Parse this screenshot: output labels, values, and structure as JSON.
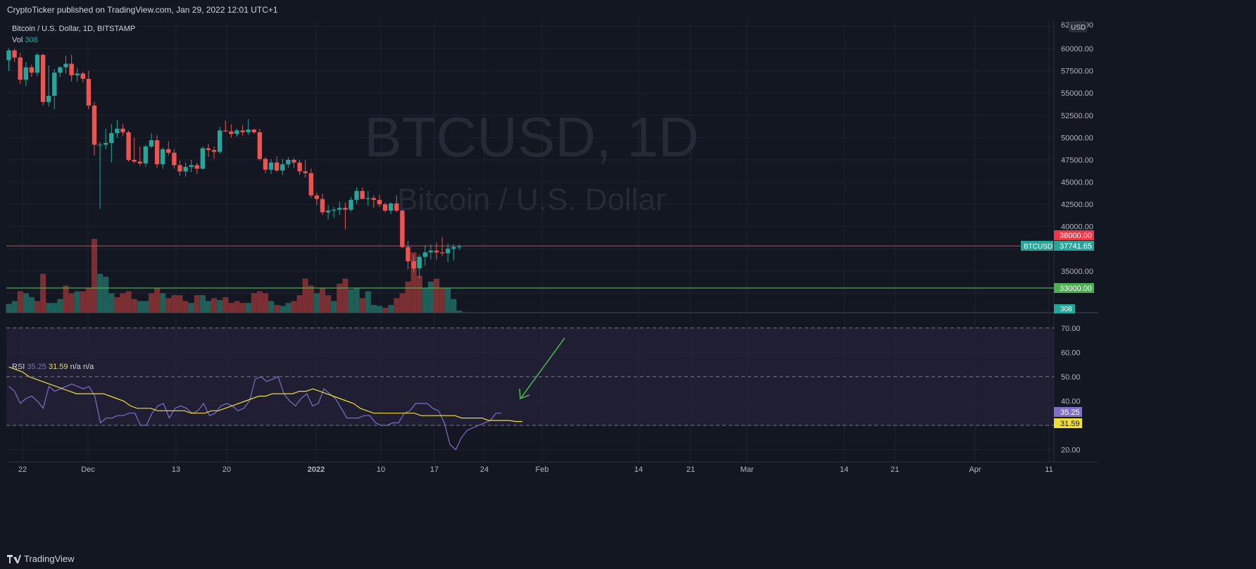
{
  "header": {
    "publisher_line": "CryptoTicker published on TradingView.com, Jan 29, 2022 12:01 UTC+1"
  },
  "legend": {
    "symbol_line": "Bitcoin / U.S. Dollar, 1D, BITSTAMP",
    "vol_label": "Vol",
    "vol_value": "308",
    "rsi_label": "RSI",
    "rsi_value": "35.25",
    "rsi_ma_value": "31.59",
    "rsi_na1": "n/a",
    "rsi_na2": "n/a"
  },
  "watermark": {
    "title": "BTCUSD, 1D",
    "subtitle": "Bitcoin / U.S. Dollar"
  },
  "footer": {
    "brand": "TradingView"
  },
  "colors": {
    "up": "#26a69a",
    "down": "#ef5350",
    "background": "#131722",
    "grid": "#1f2330",
    "resistance": "#f23645",
    "support": "#4caf50",
    "rsi_line": "#7e6fc8",
    "rsi_ma": "#f1dd3a",
    "rsi_band": "#2a2540",
    "arrow": "#4caf50"
  },
  "chart_data": {
    "type": "candlestick",
    "symbol": "BTCUSD",
    "timeframe": "1D",
    "exchange": "BITSTAMP",
    "price_axis": {
      "currency": "USD",
      "top_label": "62500.00",
      "ticks": [
        "60000.00",
        "57500.00",
        "55000.00",
        "52500.00",
        "50000.00",
        "47500.00",
        "45000.00",
        "42500.00",
        "40000.00",
        "35000.00"
      ]
    },
    "x_axis_ticks": [
      "22",
      "Dec",
      "13",
      "20",
      "2022",
      "10",
      "17",
      "24",
      "Feb",
      "14",
      "21",
      "Mar",
      "14",
      "21",
      "Apr",
      "11"
    ],
    "price_labels": {
      "resistance": {
        "value": 38000,
        "label": "38000.00"
      },
      "current": {
        "value": 37741.65,
        "label": "37741.65",
        "tag": "BTCUSD"
      },
      "support": {
        "value": 33000,
        "label": "33000.00"
      },
      "volume": {
        "label": "308"
      }
    },
    "candles": [
      {
        "o": 58700,
        "h": 60000,
        "l": 57500,
        "c": 59800
      },
      {
        "o": 59800,
        "h": 60000,
        "l": 58500,
        "c": 59000
      },
      {
        "o": 59000,
        "h": 59500,
        "l": 56000,
        "c": 56500
      },
      {
        "o": 56500,
        "h": 58500,
        "l": 55800,
        "c": 57900
      },
      {
        "o": 57900,
        "h": 58200,
        "l": 56800,
        "c": 57300
      },
      {
        "o": 57300,
        "h": 59500,
        "l": 56900,
        "c": 59300
      },
      {
        "o": 59300,
        "h": 59400,
        "l": 53600,
        "c": 54000
      },
      {
        "o": 54000,
        "h": 58100,
        "l": 53500,
        "c": 54700
      },
      {
        "o": 54700,
        "h": 57700,
        "l": 53200,
        "c": 57300
      },
      {
        "o": 57300,
        "h": 58000,
        "l": 56800,
        "c": 57900
      },
      {
        "o": 57900,
        "h": 59200,
        "l": 57200,
        "c": 58300
      },
      {
        "o": 58300,
        "h": 59300,
        "l": 56300,
        "c": 57000
      },
      {
        "o": 57000,
        "h": 57800,
        "l": 56300,
        "c": 57200
      },
      {
        "o": 57200,
        "h": 57400,
        "l": 56200,
        "c": 56600
      },
      {
        "o": 56600,
        "h": 57500,
        "l": 53200,
        "c": 53600
      },
      {
        "o": 53600,
        "h": 54000,
        "l": 48000,
        "c": 49200
      },
      {
        "o": 49200,
        "h": 49500,
        "l": 42000,
        "c": 49200
      },
      {
        "o": 49200,
        "h": 51000,
        "l": 48700,
        "c": 49400
      },
      {
        "o": 49400,
        "h": 51500,
        "l": 47200,
        "c": 50500
      },
      {
        "o": 50500,
        "h": 52000,
        "l": 50000,
        "c": 51000
      },
      {
        "o": 51000,
        "h": 51500,
        "l": 50200,
        "c": 50600
      },
      {
        "o": 50600,
        "h": 50800,
        "l": 47300,
        "c": 47500
      },
      {
        "o": 47500,
        "h": 50000,
        "l": 47100,
        "c": 47300
      },
      {
        "o": 47300,
        "h": 49000,
        "l": 46800,
        "c": 47100
      },
      {
        "o": 47100,
        "h": 49200,
        "l": 46700,
        "c": 49000
      },
      {
        "o": 49000,
        "h": 50500,
        "l": 48800,
        "c": 49700
      },
      {
        "o": 49700,
        "h": 50300,
        "l": 46600,
        "c": 47000
      },
      {
        "o": 47000,
        "h": 48900,
        "l": 46500,
        "c": 48700
      },
      {
        "o": 48700,
        "h": 49600,
        "l": 48000,
        "c": 48300
      },
      {
        "o": 48300,
        "h": 48700,
        "l": 46500,
        "c": 46900
      },
      {
        "o": 46900,
        "h": 47400,
        "l": 45700,
        "c": 46200
      },
      {
        "o": 46200,
        "h": 47200,
        "l": 45600,
        "c": 46700
      },
      {
        "o": 46700,
        "h": 47500,
        "l": 46100,
        "c": 46900
      },
      {
        "o": 46900,
        "h": 47200,
        "l": 45900,
        "c": 46500
      },
      {
        "o": 46500,
        "h": 49000,
        "l": 46400,
        "c": 48800
      },
      {
        "o": 48800,
        "h": 49300,
        "l": 47800,
        "c": 48600
      },
      {
        "o": 48600,
        "h": 49000,
        "l": 47600,
        "c": 48400
      },
      {
        "o": 48400,
        "h": 51200,
        "l": 48200,
        "c": 50800
      },
      {
        "o": 50800,
        "h": 51900,
        "l": 50600,
        "c": 50700
      },
      {
        "o": 50700,
        "h": 51500,
        "l": 50000,
        "c": 50400
      },
      {
        "o": 50400,
        "h": 51000,
        "l": 50100,
        "c": 50800
      },
      {
        "o": 50800,
        "h": 51400,
        "l": 50200,
        "c": 50600
      },
      {
        "o": 50600,
        "h": 52100,
        "l": 50300,
        "c": 50900
      },
      {
        "o": 50900,
        "h": 51000,
        "l": 50400,
        "c": 50600
      },
      {
        "o": 50600,
        "h": 51000,
        "l": 47400,
        "c": 47600
      },
      {
        "o": 47600,
        "h": 47800,
        "l": 46000,
        "c": 46400
      },
      {
        "o": 46400,
        "h": 47600,
        "l": 45900,
        "c": 47200
      },
      {
        "o": 47200,
        "h": 47900,
        "l": 46100,
        "c": 46300
      },
      {
        "o": 46300,
        "h": 47600,
        "l": 45800,
        "c": 47000
      },
      {
        "o": 47000,
        "h": 47800,
        "l": 46600,
        "c": 47500
      },
      {
        "o": 47500,
        "h": 47700,
        "l": 46600,
        "c": 47200
      },
      {
        "o": 47200,
        "h": 47500,
        "l": 45800,
        "c": 46200
      },
      {
        "o": 46200,
        "h": 47500,
        "l": 45500,
        "c": 46000
      },
      {
        "o": 46000,
        "h": 46500,
        "l": 43200,
        "c": 43500
      },
      {
        "o": 43500,
        "h": 43800,
        "l": 42400,
        "c": 43100
      },
      {
        "o": 43100,
        "h": 43700,
        "l": 41300,
        "c": 41600
      },
      {
        "o": 41600,
        "h": 42400,
        "l": 40800,
        "c": 41800
      },
      {
        "o": 41800,
        "h": 42200,
        "l": 41000,
        "c": 41900
      },
      {
        "o": 41900,
        "h": 42800,
        "l": 41300,
        "c": 42100
      },
      {
        "o": 42100,
        "h": 42700,
        "l": 39700,
        "c": 41900
      },
      {
        "o": 41900,
        "h": 43300,
        "l": 41700,
        "c": 43000
      },
      {
        "o": 43000,
        "h": 44400,
        "l": 42500,
        "c": 44000
      },
      {
        "o": 44000,
        "h": 44400,
        "l": 43100,
        "c": 43100
      },
      {
        "o": 43100,
        "h": 44000,
        "l": 42300,
        "c": 43200
      },
      {
        "o": 43200,
        "h": 43500,
        "l": 42100,
        "c": 43000
      },
      {
        "o": 43000,
        "h": 43600,
        "l": 42200,
        "c": 42500
      },
      {
        "o": 42500,
        "h": 42700,
        "l": 41600,
        "c": 41800
      },
      {
        "o": 41800,
        "h": 42700,
        "l": 41400,
        "c": 42600
      },
      {
        "o": 42600,
        "h": 43500,
        "l": 41600,
        "c": 41800
      },
      {
        "o": 41800,
        "h": 41900,
        "l": 37600,
        "c": 37700
      },
      {
        "o": 37700,
        "h": 38400,
        "l": 35200,
        "c": 36100
      },
      {
        "o": 36100,
        "h": 36800,
        "l": 34800,
        "c": 35300
      },
      {
        "o": 35300,
        "h": 36900,
        "l": 34200,
        "c": 36600
      },
      {
        "o": 36600,
        "h": 37900,
        "l": 35600,
        "c": 37100
      },
      {
        "o": 37100,
        "h": 38000,
        "l": 36300,
        "c": 37300
      },
      {
        "o": 37300,
        "h": 38200,
        "l": 36300,
        "c": 37100
      },
      {
        "o": 37100,
        "h": 38800,
        "l": 36700,
        "c": 37000
      },
      {
        "o": 37000,
        "h": 38100,
        "l": 36000,
        "c": 37500
      },
      {
        "o": 37500,
        "h": 38000,
        "l": 36200,
        "c": 37700
      },
      {
        "o": 37700,
        "h": 38000,
        "l": 37400,
        "c": 37741.65
      }
    ],
    "volume": [
      {
        "v": 9,
        "up": true
      },
      {
        "v": 12,
        "up": true
      },
      {
        "v": 22,
        "up": false
      },
      {
        "v": 20,
        "up": true
      },
      {
        "v": 16,
        "up": true
      },
      {
        "v": 12,
        "up": false
      },
      {
        "v": 40,
        "up": false
      },
      {
        "v": 10,
        "up": true
      },
      {
        "v": 10,
        "up": true
      },
      {
        "v": 14,
        "up": true
      },
      {
        "v": 28,
        "up": false
      },
      {
        "v": 20,
        "up": false
      },
      {
        "v": 22,
        "up": true
      },
      {
        "v": 22,
        "up": false
      },
      {
        "v": 25,
        "up": false
      },
      {
        "v": 76,
        "up": false
      },
      {
        "v": 40,
        "up": true
      },
      {
        "v": 37,
        "up": true
      },
      {
        "v": 20,
        "up": true
      },
      {
        "v": 16,
        "up": false
      },
      {
        "v": 20,
        "up": false
      },
      {
        "v": 22,
        "up": false
      },
      {
        "v": 14,
        "up": false
      },
      {
        "v": 12,
        "up": true
      },
      {
        "v": 12,
        "up": true
      },
      {
        "v": 20,
        "up": false
      },
      {
        "v": 25,
        "up": false
      },
      {
        "v": 20,
        "up": true
      },
      {
        "v": 15,
        "up": false
      },
      {
        "v": 18,
        "up": false
      },
      {
        "v": 18,
        "up": false
      },
      {
        "v": 12,
        "up": false
      },
      {
        "v": 10,
        "up": true
      },
      {
        "v": 18,
        "up": false
      },
      {
        "v": 18,
        "up": true
      },
      {
        "v": 12,
        "up": true
      },
      {
        "v": 15,
        "up": false
      },
      {
        "v": 13,
        "up": true
      },
      {
        "v": 16,
        "up": false
      },
      {
        "v": 10,
        "up": false
      },
      {
        "v": 12,
        "up": false
      },
      {
        "v": 10,
        "up": false
      },
      {
        "v": 10,
        "up": true
      },
      {
        "v": 20,
        "up": false
      },
      {
        "v": 22,
        "up": false
      },
      {
        "v": 20,
        "up": false
      },
      {
        "v": 12,
        "up": true
      },
      {
        "v": 8,
        "up": false
      },
      {
        "v": 7,
        "up": true
      },
      {
        "v": 10,
        "up": true
      },
      {
        "v": 12,
        "up": false
      },
      {
        "v": 18,
        "up": false
      },
      {
        "v": 35,
        "up": false
      },
      {
        "v": 28,
        "up": false
      },
      {
        "v": 20,
        "up": true
      },
      {
        "v": 25,
        "up": false
      },
      {
        "v": 18,
        "up": false
      },
      {
        "v": 12,
        "up": true
      },
      {
        "v": 30,
        "up": false
      },
      {
        "v": 35,
        "up": false
      },
      {
        "v": 24,
        "up": true
      },
      {
        "v": 25,
        "up": true
      },
      {
        "v": 15,
        "up": false
      },
      {
        "v": 22,
        "up": true
      },
      {
        "v": 8,
        "up": true
      },
      {
        "v": 7,
        "up": true
      },
      {
        "v": 5,
        "up": false
      },
      {
        "v": 8,
        "up": true
      },
      {
        "v": 15,
        "up": false
      },
      {
        "v": 20,
        "up": false
      },
      {
        "v": 32,
        "up": false
      },
      {
        "v": 62,
        "up": false
      },
      {
        "v": 38,
        "up": false
      },
      {
        "v": 25,
        "up": true
      },
      {
        "v": 32,
        "up": true
      },
      {
        "v": 35,
        "up": false
      },
      {
        "v": 25,
        "up": false
      },
      {
        "v": 25,
        "up": true
      },
      {
        "v": 14,
        "up": true
      },
      {
        "v": 2,
        "up": true
      }
    ],
    "rsi": {
      "levels": {
        "upper": 70,
        "middle": 50,
        "lower": 30
      },
      "ticks": [
        "70.00",
        "60.00",
        "50.00",
        "40.00",
        "20.00"
      ],
      "current": {
        "value": 35.25,
        "label": "35.25"
      },
      "ma_current": {
        "value": 31.59,
        "label": "31.59"
      },
      "values": [
        46,
        44,
        39,
        41,
        42,
        40,
        37,
        46,
        44,
        45,
        46,
        47,
        46,
        45,
        46,
        42,
        31,
        33,
        33,
        34,
        34,
        35,
        35,
        30,
        30,
        35,
        38,
        39,
        33,
        37,
        38,
        37,
        35,
        36,
        39,
        34,
        35,
        38,
        39,
        38,
        36,
        37,
        40,
        49,
        50,
        48,
        49,
        50,
        43,
        40,
        38,
        41,
        43,
        38,
        39,
        45,
        43,
        41,
        37,
        33,
        33,
        33,
        34,
        34,
        31,
        30,
        30,
        31,
        31,
        35,
        36,
        39,
        39,
        39,
        37,
        36,
        31,
        22,
        20,
        25,
        28,
        29,
        30,
        31,
        32,
        35,
        35
      ],
      "ma": [
        54,
        53,
        52,
        50,
        49,
        48,
        47,
        46,
        45,
        44,
        43,
        43,
        43,
        43,
        43,
        42,
        41,
        40,
        38,
        37,
        37,
        37,
        36,
        36,
        36,
        36,
        36,
        35,
        35,
        35,
        36,
        36,
        37,
        38,
        39,
        40,
        41,
        42,
        42,
        43,
        43,
        43,
        43,
        44,
        44,
        45,
        44,
        43,
        42,
        41,
        40,
        39,
        37,
        36,
        35,
        35,
        35,
        35,
        35,
        35,
        35,
        34,
        34,
        34,
        34,
        34,
        34,
        33,
        33,
        33,
        33,
        32,
        32,
        32,
        32,
        31.59,
        31.59
      ]
    },
    "annotations": [
      {
        "type": "hline",
        "value": 38000,
        "label": "resistance"
      },
      {
        "type": "hline",
        "value": 33000,
        "label": "support"
      },
      {
        "type": "arrow",
        "pane": "rsi",
        "from_date": "Feb 4",
        "to_date": "Jan 29",
        "from_value": 66,
        "to_value": 40
      }
    ]
  }
}
